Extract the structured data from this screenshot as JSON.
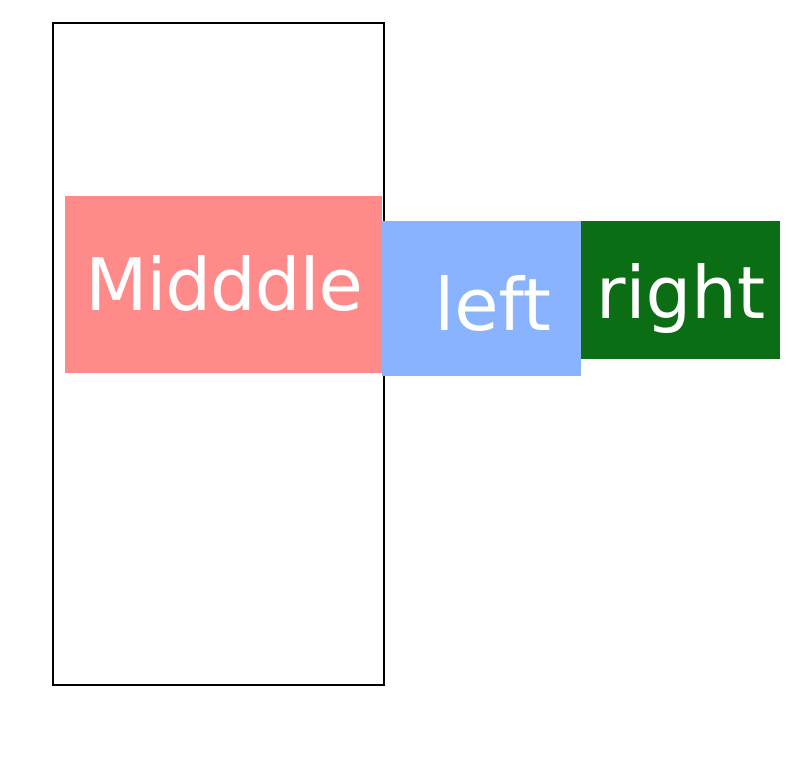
{
  "boxes": {
    "middle": {
      "label": "Midddle",
      "color": "#ff8a8a"
    },
    "left": {
      "label": "left",
      "color": "#8ab3ff"
    },
    "right": {
      "label": "right",
      "color": "#0b6e14"
    }
  },
  "container": {
    "border_color": "#000000"
  }
}
